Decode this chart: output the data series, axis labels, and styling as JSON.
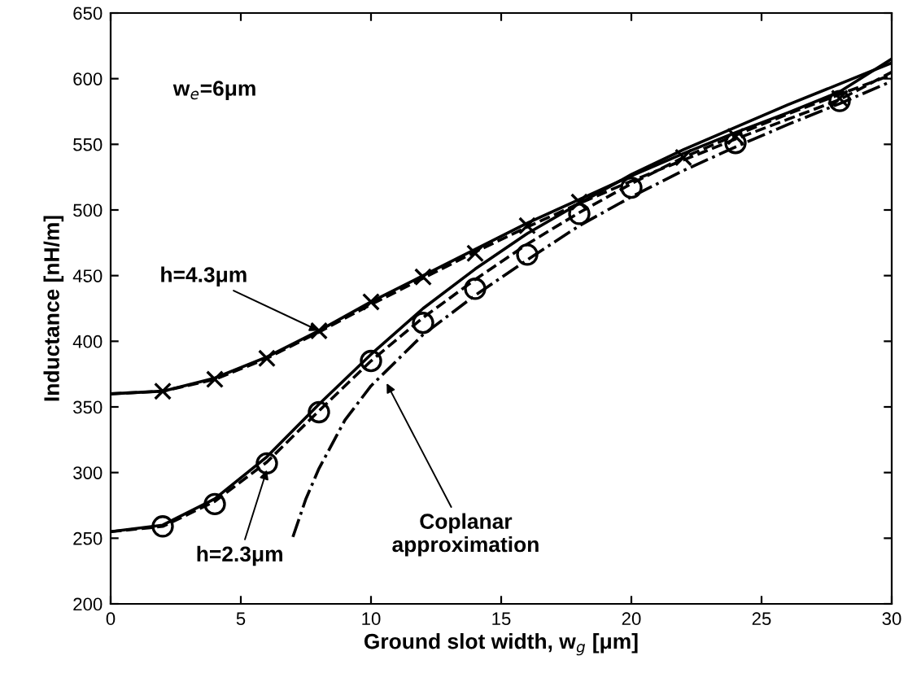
{
  "chart_data": {
    "type": "line",
    "xlabel": "Ground slot width, w$_{g}$ [μm]",
    "ylabel": "Inductance [nH/m]",
    "xlim": [
      0,
      30
    ],
    "ylim": [
      200,
      650
    ],
    "xticks": [
      0,
      5,
      10,
      15,
      20,
      25,
      30
    ],
    "yticks": [
      200,
      250,
      300,
      350,
      400,
      450,
      500,
      550,
      600,
      650
    ],
    "grid": false,
    "legend": false,
    "series": [
      {
        "color": "#000000",
        "line_style": "solid",
        "marker": "none",
        "x": [
          0,
          2,
          4,
          6,
          8,
          10,
          12,
          14,
          16,
          18,
          20,
          22,
          24,
          26,
          28,
          30
        ],
        "values": [
          360,
          362,
          372,
          388,
          408,
          430,
          450,
          470,
          490,
          508,
          526,
          543,
          559,
          574,
          590,
          615
        ]
      },
      {
        "color": "#000000",
        "line_style": "dashed",
        "marker": "none",
        "x": [
          0,
          2,
          4,
          6,
          8,
          10,
          12,
          14,
          16,
          18,
          20,
          22,
          24,
          26,
          28,
          30
        ],
        "values": [
          360,
          362,
          371,
          387,
          407,
          428,
          448,
          468,
          487,
          505,
          522,
          538,
          554,
          569,
          584,
          605
        ]
      },
      {
        "type": "scatter",
        "color": "#000000",
        "marker": "cross",
        "x": [
          2,
          4,
          6,
          8,
          10,
          12,
          14,
          16,
          18,
          22,
          24,
          28
        ],
        "values": [
          362,
          371,
          387,
          408,
          430,
          449,
          467,
          488,
          506,
          540,
          556,
          585
        ]
      },
      {
        "color": "#000000",
        "line_style": "solid",
        "marker": "none",
        "x": [
          0,
          2,
          4,
          6,
          8,
          10,
          12,
          14,
          16,
          18,
          20,
          22,
          24,
          26,
          28,
          30
        ],
        "values": [
          255,
          260,
          280,
          312,
          352,
          390,
          425,
          455,
          482,
          505,
          527,
          546,
          563,
          580,
          596,
          612
        ]
      },
      {
        "color": "#000000",
        "line_style": "dashed",
        "marker": "none",
        "x": [
          0,
          2,
          4,
          6,
          8,
          10,
          12,
          14,
          16,
          18,
          20,
          22,
          24,
          26,
          28,
          30
        ],
        "values": [
          255,
          259,
          278,
          308,
          347,
          385,
          418,
          447,
          474,
          498,
          520,
          540,
          557,
          573,
          588,
          603
        ]
      },
      {
        "type": "scatter",
        "color": "#000000",
        "marker": "circle",
        "x": [
          2,
          4,
          6,
          8,
          10,
          12,
          14,
          16,
          18,
          20,
          24,
          28
        ],
        "values": [
          259,
          276,
          307,
          346,
          385,
          414,
          440,
          466,
          497,
          517,
          551,
          583
        ]
      },
      {
        "color": "#000000",
        "line_style": "dashdot",
        "marker": "none",
        "x": [
          7,
          7.5,
          8,
          9,
          10,
          12,
          14,
          16,
          18,
          20,
          22,
          24,
          26,
          28,
          30
        ],
        "values": [
          251,
          280,
          303,
          340,
          366,
          405,
          435,
          462,
          488,
          510,
          530,
          548,
          565,
          581,
          598
        ]
      }
    ],
    "annotations": [
      "w$_{e}$=6μm",
      {
        "text": "h=4.3μm",
        "x": 8,
        "y": 408
      },
      {
        "text": "h=2.3μm",
        "x": 6,
        "y": 302
      },
      {
        "text": "Coplanar\napproximation",
        "x": 10.6,
        "y": 368
      }
    ]
  }
}
